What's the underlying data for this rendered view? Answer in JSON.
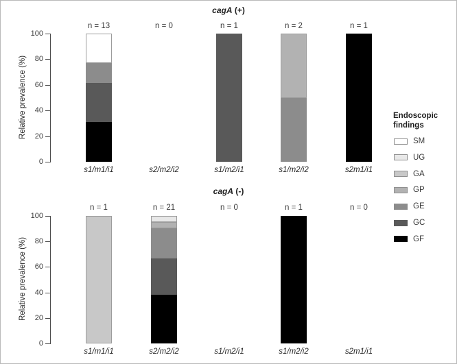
{
  "figure": {
    "description": "Stacked bar charts of relative prevalence of endoscopic findings by vacA genotype, split by cagA status"
  },
  "legend": {
    "title_line1": "Endoscopic",
    "title_line2": "findings",
    "items": [
      {
        "code": "SM",
        "color": "#ffffff"
      },
      {
        "code": "UG",
        "color": "#e8e8e8"
      },
      {
        "code": "GA",
        "color": "#c8c8c8"
      },
      {
        "code": "GP",
        "color": "#b2b2b2"
      },
      {
        "code": "GE",
        "color": "#8c8c8c"
      },
      {
        "code": "GC",
        "color": "#595959"
      },
      {
        "code": "GF",
        "color": "#000000"
      }
    ]
  },
  "chart_data": [
    {
      "type": "bar",
      "stacked": true,
      "title": "cagA (+)",
      "title_gene": "cagA",
      "title_sign": "(+)",
      "ylabel": "Relative prevalence (%)",
      "ylim": [
        0,
        100
      ],
      "yticks": [
        0,
        20,
        40,
        60,
        80,
        100
      ],
      "grid": false,
      "categories": [
        "s1/m1/i1",
        "s2/m2/i2",
        "s1/m2/i1",
        "s1/m2/i2",
        "s2m1/i1"
      ],
      "n_labels": [
        "n = 13",
        "n = 0",
        "n = 1",
        "n = 2",
        "n = 1"
      ],
      "bars": [
        {
          "category": "s1/m1/i1",
          "n": 13,
          "segments": [
            {
              "code": "GF",
              "count": 4,
              "pct": 30.77
            },
            {
              "code": "GC",
              "count": 4,
              "pct": 30.77
            },
            {
              "code": "GE",
              "count": 2,
              "pct": 15.38
            },
            {
              "code": "SM",
              "count": 3,
              "pct": 23.08
            }
          ]
        },
        {
          "category": "s2/m2/i2",
          "n": 0,
          "segments": []
        },
        {
          "category": "s1/m2/i1",
          "n": 1,
          "segments": [
            {
              "code": "GC",
              "count": 1,
              "pct": 100
            }
          ]
        },
        {
          "category": "s1/m2/i2",
          "n": 2,
          "segments": [
            {
              "code": "GE",
              "count": 1,
              "pct": 50
            },
            {
              "code": "GP",
              "count": 1,
              "pct": 50
            }
          ]
        },
        {
          "category": "s2m1/i1",
          "n": 1,
          "segments": [
            {
              "code": "GF",
              "count": 1,
              "pct": 100
            }
          ]
        }
      ]
    },
    {
      "type": "bar",
      "stacked": true,
      "title": "cagA (-)",
      "title_gene": "cagA",
      "title_sign": "(-)",
      "ylabel": "Relative prevalence (%)",
      "ylim": [
        0,
        100
      ],
      "yticks": [
        0,
        20,
        40,
        60,
        80,
        100
      ],
      "grid": false,
      "categories": [
        "s1/m1/i1",
        "s2/m2/i2",
        "s1/m2/i1",
        "s1/m2/i2",
        "s2m1/i1"
      ],
      "n_labels": [
        "n = 1",
        "n = 21",
        "n = 0",
        "n = 1",
        "n = 0"
      ],
      "bars": [
        {
          "category": "s1/m1/i1",
          "n": 1,
          "segments": [
            {
              "code": "GA",
              "count": 1,
              "pct": 100
            }
          ]
        },
        {
          "category": "s2/m2/i2",
          "n": 21,
          "segments": [
            {
              "code": "GF",
              "count": 8,
              "pct": 38.1
            },
            {
              "code": "GC",
              "count": 6,
              "pct": 28.57
            },
            {
              "code": "GE",
              "count": 5,
              "pct": 23.81
            },
            {
              "code": "GP",
              "count": 1,
              "pct": 4.76
            },
            {
              "code": "UG",
              "count": 1,
              "pct": 4.76
            }
          ]
        },
        {
          "category": "s1/m2/i1",
          "n": 0,
          "segments": []
        },
        {
          "category": "s1/m2/i2",
          "n": 1,
          "segments": [
            {
              "code": "GF",
              "count": 1,
              "pct": 100
            }
          ]
        },
        {
          "category": "s2m1/i1",
          "n": 0,
          "segments": []
        }
      ]
    }
  ]
}
